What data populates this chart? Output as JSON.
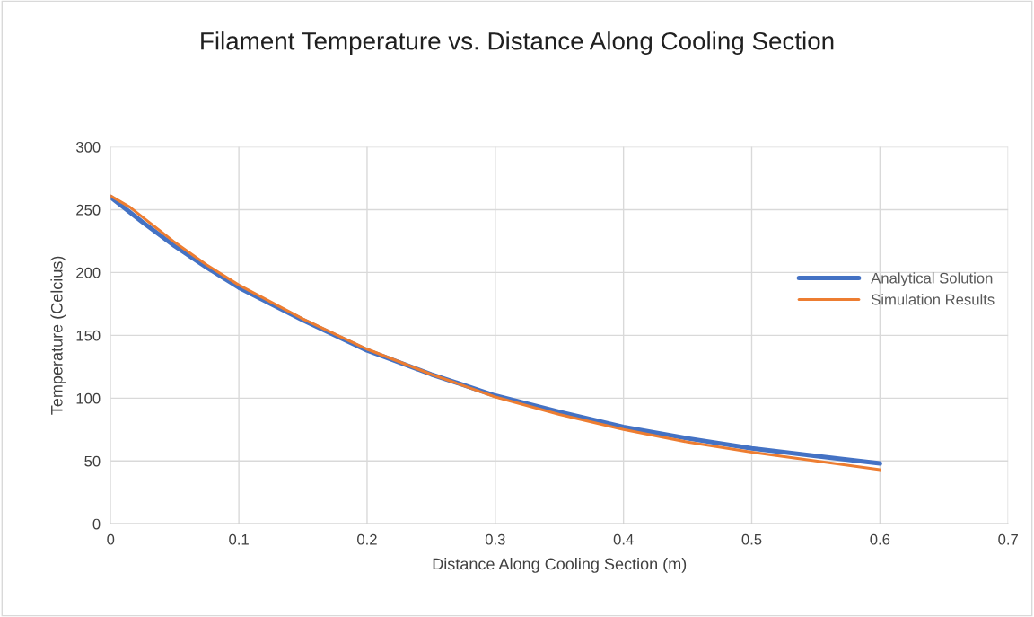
{
  "chart_data": {
    "type": "line",
    "title": "Filament Temperature vs. Distance Along Cooling Section",
    "xlabel": "Distance Along Cooling Section (m)",
    "ylabel": "Temperature (Celcius)",
    "series": [
      {
        "name": "Analytical Solution",
        "color": "#4472c4",
        "x": [
          0,
          0.025,
          0.05,
          0.075,
          0.1,
          0.15,
          0.2,
          0.25,
          0.3,
          0.35,
          0.4,
          0.45,
          0.5,
          0.55,
          0.6
        ],
        "values": [
          260,
          240,
          221,
          204,
          188,
          162,
          138,
          119,
          102,
          89,
          77,
          68,
          60,
          54,
          48
        ]
      },
      {
        "name": "Simulation Results",
        "color": "#ed7d31",
        "x": [
          0,
          0.015,
          0.025,
          0.05,
          0.075,
          0.1,
          0.15,
          0.2,
          0.25,
          0.3,
          0.35,
          0.4,
          0.45,
          0.5,
          0.55,
          0.6
        ],
        "values": [
          261,
          252,
          244,
          224,
          206,
          190,
          163,
          139,
          119,
          101,
          87,
          75,
          65,
          57,
          50,
          43
        ]
      }
    ],
    "xlim": [
      0,
      0.7
    ],
    "xticks": [
      0,
      0.1,
      0.2,
      0.3,
      0.4,
      0.5,
      0.6,
      0.7
    ],
    "ylim": [
      0,
      300
    ],
    "yticks": [
      0,
      50,
      100,
      150,
      200,
      250,
      300
    ],
    "grid": true,
    "legend": "right",
    "line_style": "solid",
    "marker": "none"
  }
}
